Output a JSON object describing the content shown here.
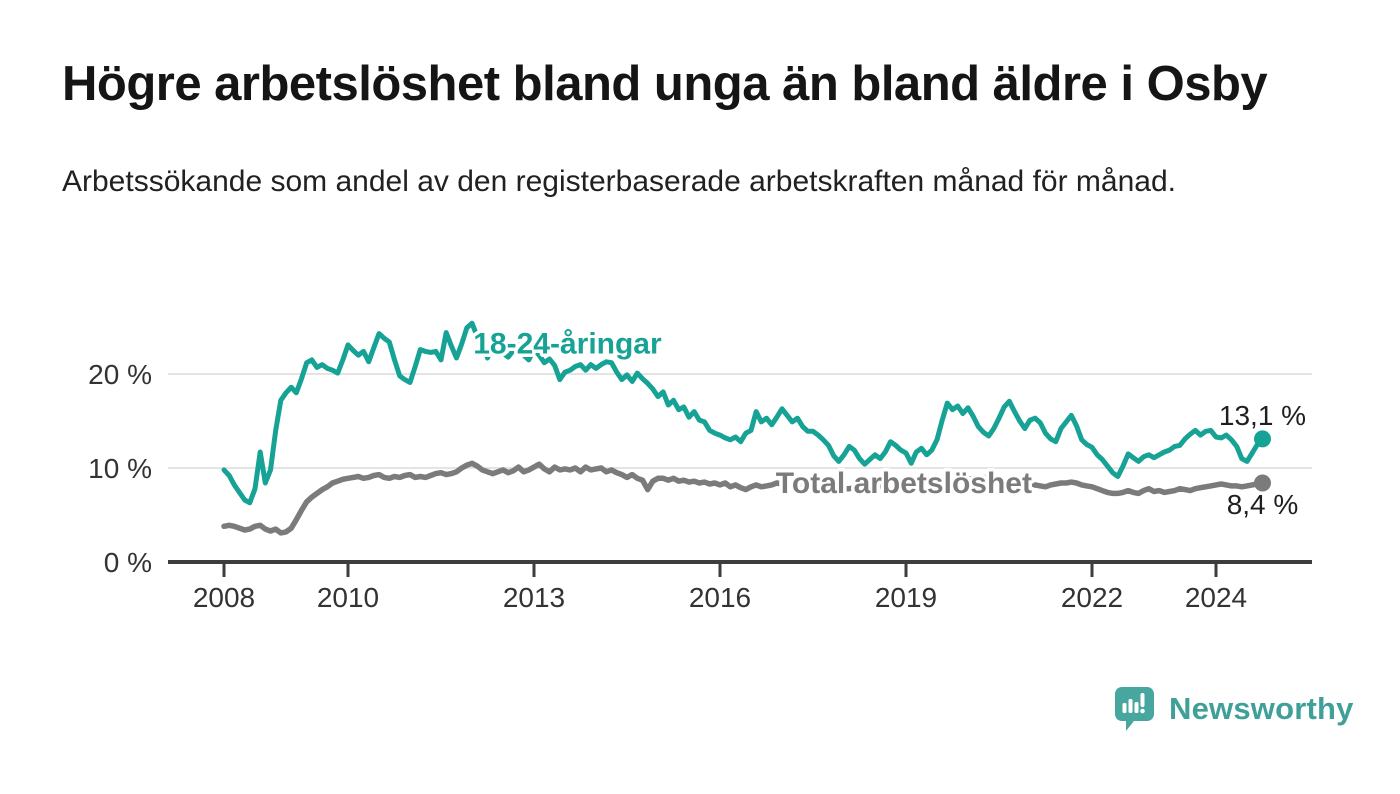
{
  "title": "Högre arbetslöshet bland unga än bland äldre i Osby",
  "subtitle": "Arbetssökande som andel av den registerbaserade arbetskraften månad för månad.",
  "chart_data": {
    "type": "line",
    "unit": "%",
    "grid": "horizontal",
    "axis_color": "#3d3d3d",
    "grid_color": "#dcdcdc",
    "x_axis": {
      "tick_years": [
        2008,
        2010,
        2013,
        2016,
        2019,
        2022,
        2024
      ],
      "tick_labels": [
        "2008",
        "2010",
        "2013",
        "2016",
        "2019",
        "2022",
        "2024"
      ]
    },
    "y_axis": {
      "ticks": [
        0,
        10,
        20
      ],
      "tick_labels": [
        "0 %",
        "10 %",
        "20 %"
      ],
      "range": [
        0,
        26
      ]
    },
    "start_year": 2008,
    "frequency": "monthly",
    "series": [
      {
        "id": "youth",
        "name": "18-24-åringar",
        "color": "#17a296",
        "label_anchor": [
          2012.02,
          22.2
        ],
        "end_label": "13,1 %",
        "end_value": 13.1,
        "values": [
          9.8,
          9.2,
          8.2,
          7.4,
          6.6,
          6.3,
          7.8,
          11.7,
          8.4,
          9.8,
          14.0,
          17.2,
          18.0,
          18.6,
          18.0,
          19.5,
          21.2,
          21.5,
          20.7,
          21.0,
          20.6,
          20.4,
          20.1,
          21.5,
          23.1,
          22.5,
          22.0,
          22.4,
          21.3,
          22.8,
          24.3,
          23.8,
          23.4,
          21.5,
          19.8,
          19.4,
          19.1,
          20.8,
          22.6,
          22.4,
          22.3,
          22.4,
          21.5,
          24.4,
          23.0,
          21.7,
          23.2,
          24.9,
          25.4,
          24.0,
          23.6,
          21.7,
          23.1,
          22.6,
          22.2,
          21.8,
          22.5,
          23.1,
          22.0,
          21.5,
          22.6,
          22.0,
          21.2,
          21.6,
          20.9,
          19.4,
          20.2,
          20.4,
          20.8,
          21.0,
          20.4,
          21.0,
          20.6,
          21.0,
          21.3,
          21.2,
          20.2,
          19.4,
          19.9,
          19.2,
          20.1,
          19.5,
          19.0,
          18.4,
          17.6,
          18.1,
          16.7,
          17.2,
          16.2,
          16.5,
          15.4,
          16.0,
          15.1,
          14.9,
          14.0,
          13.7,
          13.5,
          13.2,
          13.0,
          13.3,
          12.8,
          13.7,
          14.0,
          16.0,
          14.9,
          15.3,
          14.6,
          15.4,
          16.3,
          15.6,
          14.9,
          15.3,
          14.4,
          13.9,
          13.9,
          13.5,
          13.0,
          12.4,
          11.3,
          10.7,
          11.4,
          12.3,
          11.9,
          11.0,
          10.4,
          10.9,
          11.4,
          11.0,
          11.7,
          12.8,
          12.4,
          11.9,
          11.6,
          10.5,
          11.7,
          12.1,
          11.4,
          11.9,
          13.0,
          15.1,
          16.9,
          16.2,
          16.6,
          15.8,
          16.4,
          15.5,
          14.4,
          13.8,
          13.4,
          14.2,
          15.3,
          16.5,
          17.1,
          16.0,
          15.0,
          14.2,
          15.1,
          15.3,
          14.8,
          13.7,
          13.1,
          12.8,
          14.2,
          14.9,
          15.6,
          14.5,
          13.0,
          12.5,
          12.2,
          11.4,
          10.9,
          10.2,
          9.5,
          9.1,
          10.2,
          11.5,
          11.1,
          10.7,
          11.2,
          11.4,
          11.1,
          11.4,
          11.7,
          11.9,
          12.3,
          12.4,
          13.1,
          13.6,
          14.0,
          13.5,
          13.9,
          14.0,
          13.3,
          13.2,
          13.5,
          13.0,
          12.3,
          11.0,
          10.7,
          11.6,
          12.5,
          13.1
        ]
      },
      {
        "id": "total",
        "name": "Total arbetslöshet",
        "color": "#7b7b7b",
        "label_anchor": [
          2016.9,
          7.35
        ],
        "end_label": "8,4 %",
        "end_value": 8.4,
        "values": [
          3.8,
          3.9,
          3.8,
          3.6,
          3.4,
          3.5,
          3.8,
          3.9,
          3.5,
          3.3,
          3.5,
          3.1,
          3.2,
          3.6,
          4.5,
          5.5,
          6.4,
          6.9,
          7.3,
          7.7,
          8.0,
          8.4,
          8.6,
          8.8,
          8.9,
          9.0,
          9.1,
          8.9,
          9.0,
          9.2,
          9.3,
          9.0,
          8.9,
          9.1,
          9.0,
          9.2,
          9.3,
          9.0,
          9.1,
          9.0,
          9.2,
          9.4,
          9.5,
          9.3,
          9.4,
          9.6,
          10.0,
          10.3,
          10.5,
          10.2,
          9.8,
          9.6,
          9.4,
          9.6,
          9.8,
          9.5,
          9.7,
          10.1,
          9.6,
          9.8,
          10.1,
          10.4,
          9.9,
          9.6,
          10.1,
          9.8,
          9.9,
          9.8,
          10.0,
          9.6,
          10.1,
          9.8,
          9.9,
          10.0,
          9.6,
          9.8,
          9.5,
          9.3,
          9.0,
          9.3,
          8.9,
          8.7,
          7.7,
          8.6,
          8.9,
          8.9,
          8.7,
          8.9,
          8.6,
          8.7,
          8.5,
          8.6,
          8.4,
          8.5,
          8.3,
          8.4,
          8.2,
          8.4,
          8.0,
          8.2,
          7.9,
          7.7,
          8.0,
          8.2,
          8.0,
          8.1,
          8.2,
          8.4,
          8.3,
          8.2,
          8.2,
          8.1,
          8.1,
          8.0,
          8.0,
          7.9,
          7.9,
          7.8,
          7.8,
          7.8,
          7.8,
          7.8,
          7.9,
          7.9,
          8.0,
          8.0,
          8.0,
          8.1,
          8.1,
          8.1,
          8.2,
          8.2,
          8.2,
          8.3,
          8.3,
          8.4,
          8.4,
          8.5,
          8.5,
          8.6,
          8.6,
          8.7,
          8.7,
          8.8,
          8.8,
          8.9,
          9.0,
          9.0,
          8.9,
          8.8,
          8.7,
          8.6,
          8.5,
          8.4,
          8.5,
          8.3,
          8.1,
          8.2,
          8.1,
          8.0,
          8.2,
          8.3,
          8.4,
          8.4,
          8.5,
          8.4,
          8.2,
          8.1,
          8.0,
          7.8,
          7.6,
          7.4,
          7.3,
          7.3,
          7.4,
          7.6,
          7.4,
          7.3,
          7.6,
          7.8,
          7.5,
          7.6,
          7.4,
          7.5,
          7.6,
          7.8,
          7.7,
          7.6,
          7.8,
          7.9,
          8.0,
          8.1,
          8.2,
          8.3,
          8.2,
          8.1,
          8.1,
          8.0,
          8.1,
          8.2,
          8.3,
          8.4
        ]
      }
    ]
  },
  "branding": {
    "name": "Newsworthy",
    "text_color": "#3fa09a",
    "badge_color": "#47a69e",
    "icon": "bar-chart-speech-bubble-icon"
  }
}
